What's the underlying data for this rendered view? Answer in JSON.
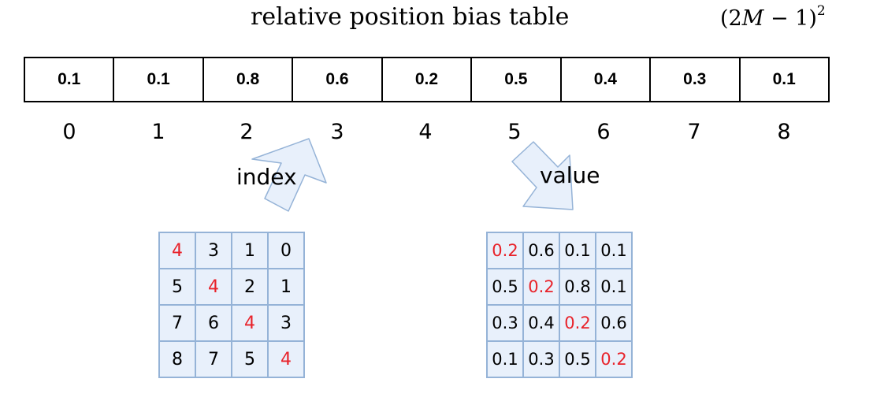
{
  "title": "relative position bias table",
  "formula": {
    "lead": "(2",
    "var": "M",
    "tail": " − 1)",
    "exp": "2"
  },
  "table": {
    "values": [
      "0.1",
      "0.1",
      "0.8",
      "0.6",
      "0.2",
      "0.5",
      "0.4",
      "0.3",
      "0.1"
    ],
    "indices": [
      "0",
      "1",
      "2",
      "3",
      "4",
      "5",
      "6",
      "7",
      "8"
    ]
  },
  "labels": {
    "index": "index",
    "value": "value"
  },
  "colors": {
    "highlight": "#e8222a",
    "grid_fill": "#e8f0fb",
    "grid_border": "#95b3d7",
    "arrow_fill": "#e8f0fb",
    "arrow_border": "#95b3d7"
  },
  "index_matrix": [
    [
      "4",
      "3",
      "1",
      "0"
    ],
    [
      "5",
      "4",
      "2",
      "1"
    ],
    [
      "7",
      "6",
      "4",
      "3"
    ],
    [
      "8",
      "7",
      "5",
      "4"
    ]
  ],
  "value_matrix": [
    [
      "0.2",
      "0.6",
      "0.1",
      "0.1"
    ],
    [
      "0.5",
      "0.2",
      "0.8",
      "0.1"
    ],
    [
      "0.3",
      "0.4",
      "0.2",
      "0.6"
    ],
    [
      "0.1",
      "0.3",
      "0.5",
      "0.2"
    ]
  ],
  "highlight": "diagonal"
}
